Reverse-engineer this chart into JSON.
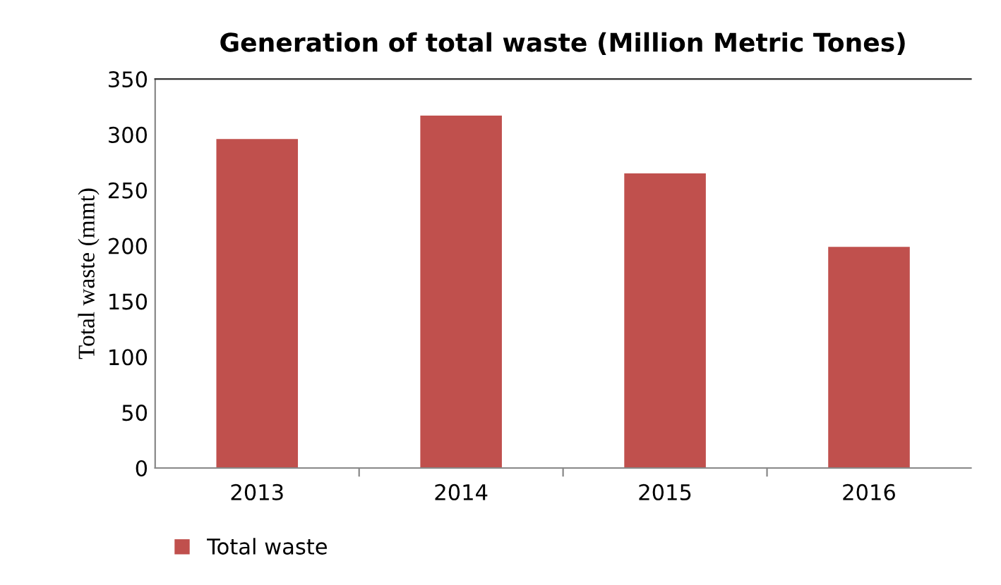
{
  "chart_data": {
    "type": "bar",
    "title": "Generation of total waste (Million Metric Tones)",
    "ylabel": "Total waste (mmt)",
    "categories": [
      "2013",
      "2014",
      "2015",
      "2016"
    ],
    "series": [
      {
        "name": "Total waste",
        "color": "#c0504d",
        "values": [
          296,
          317,
          265,
          199
        ]
      }
    ],
    "ylim": [
      0,
      350
    ],
    "yticks": [
      0,
      50,
      100,
      150,
      200,
      250,
      300,
      350
    ],
    "grid": false,
    "legend": "bottom"
  }
}
